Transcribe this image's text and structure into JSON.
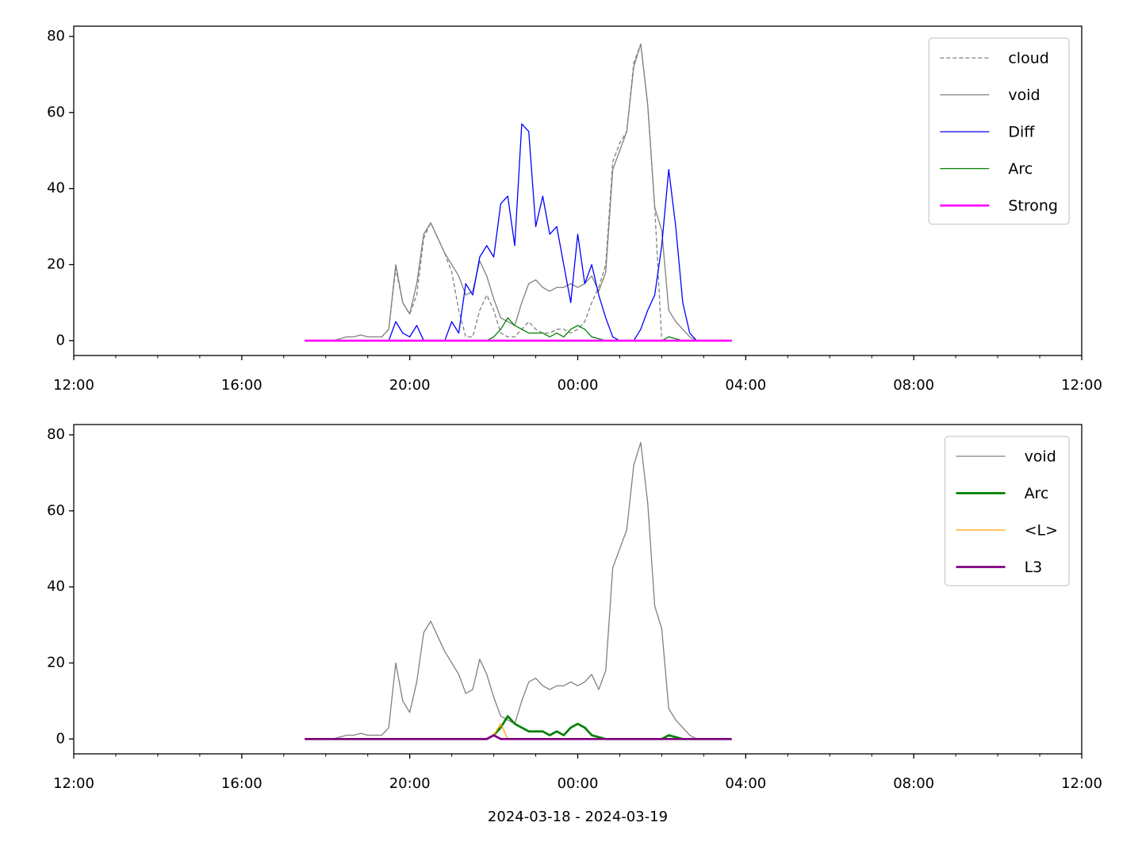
{
  "chart_data": [
    {
      "type": "line",
      "x": [
        "2024-03-18T17:30",
        "2024-03-18T17:40",
        "2024-03-18T17:50",
        "2024-03-18T18:00",
        "2024-03-18T18:10",
        "2024-03-18T18:20",
        "2024-03-18T18:30",
        "2024-03-18T18:40",
        "2024-03-18T18:50",
        "2024-03-18T19:00",
        "2024-03-18T19:10",
        "2024-03-18T19:20",
        "2024-03-18T19:30",
        "2024-03-18T19:40",
        "2024-03-18T19:50",
        "2024-03-18T20:00",
        "2024-03-18T20:10",
        "2024-03-18T20:20",
        "2024-03-18T20:30",
        "2024-03-18T20:40",
        "2024-03-18T20:50",
        "2024-03-18T21:00",
        "2024-03-18T21:10",
        "2024-03-18T21:20",
        "2024-03-18T21:30",
        "2024-03-18T21:40",
        "2024-03-18T21:50",
        "2024-03-18T22:00",
        "2024-03-18T22:10",
        "2024-03-18T22:20",
        "2024-03-18T22:30",
        "2024-03-18T22:40",
        "2024-03-18T22:50",
        "2024-03-18T23:00",
        "2024-03-18T23:10",
        "2024-03-18T23:20",
        "2024-03-18T23:30",
        "2024-03-18T23:40",
        "2024-03-18T23:50",
        "2024-03-19T00:00",
        "2024-03-19T00:10",
        "2024-03-19T00:20",
        "2024-03-19T00:30",
        "2024-03-19T00:40",
        "2024-03-19T00:50",
        "2024-03-19T01:00",
        "2024-03-19T01:10",
        "2024-03-19T01:20",
        "2024-03-19T01:30",
        "2024-03-19T01:40",
        "2024-03-19T01:50",
        "2024-03-19T02:00",
        "2024-03-19T02:10",
        "2024-03-19T02:20",
        "2024-03-19T02:30",
        "2024-03-19T02:40",
        "2024-03-19T02:50",
        "2024-03-19T03:00",
        "2024-03-19T03:10",
        "2024-03-19T03:20",
        "2024-03-19T03:30",
        "2024-03-19T03:40"
      ],
      "series": [
        {
          "name": "cloud",
          "color": "#808080",
          "linestyle": "dashed",
          "linewidth": 1.3,
          "values": [
            null,
            null,
            null,
            null,
            null,
            null,
            null,
            null,
            null,
            null,
            null,
            1,
            3,
            19,
            10,
            7,
            12,
            27,
            31,
            27,
            23,
            18,
            8,
            1,
            1,
            8,
            12,
            8,
            2,
            1,
            1,
            3,
            5,
            3,
            2,
            2,
            3,
            3,
            2,
            3,
            5,
            10,
            14,
            20,
            47,
            52,
            55,
            73,
            78,
            62,
            35,
            0,
            null,
            null,
            null,
            null,
            null,
            null,
            null,
            null,
            null,
            null
          ]
        },
        {
          "name": "void",
          "color": "#808080",
          "linewidth": 1.3,
          "values": [
            0,
            0,
            0,
            0,
            0,
            0.5,
            1,
            1,
            1.5,
            1,
            1,
            1,
            3,
            20,
            10,
            7,
            15,
            28,
            31,
            27,
            23,
            20,
            17,
            12,
            13,
            21,
            17,
            11,
            6,
            5,
            4,
            10,
            15,
            16,
            14,
            13,
            14,
            14,
            15,
            14,
            15,
            17,
            13,
            18,
            45,
            50,
            55,
            72,
            78,
            62,
            35,
            29,
            8,
            5,
            3,
            1,
            0,
            null,
            null,
            null,
            null,
            null
          ]
        },
        {
          "name": "Diff",
          "color": "#0000ff",
          "linewidth": 1.3,
          "values": [
            0,
            0,
            0,
            0,
            0,
            0,
            0,
            0,
            0,
            0,
            0,
            0,
            0,
            5,
            2,
            1,
            4,
            0,
            0,
            0,
            0,
            5,
            2,
            15,
            12,
            22,
            25,
            22,
            36,
            38,
            25,
            57,
            55,
            30,
            38,
            28,
            30,
            20,
            10,
            28,
            15,
            20,
            12,
            6,
            1,
            0,
            0,
            0,
            3,
            8,
            12,
            25,
            45,
            30,
            10,
            2,
            0,
            0,
            0,
            0,
            0,
            0
          ]
        },
        {
          "name": "Arc",
          "color": "#008000",
          "linewidth": 1.3,
          "values": [
            0,
            0,
            0,
            0,
            0,
            0,
            0,
            0,
            0,
            0,
            0,
            0,
            0,
            0,
            0,
            0,
            0,
            0,
            0,
            0,
            0,
            0,
            0,
            0,
            0,
            0,
            0,
            1,
            3,
            6,
            4,
            3,
            2,
            2,
            2,
            1,
            2,
            1,
            3,
            4,
            3,
            1,
            0.5,
            0,
            0,
            0,
            0,
            0,
            0,
            0,
            0,
            0,
            1,
            0.5,
            0,
            0,
            0,
            0,
            0,
            0,
            0,
            0
          ]
        },
        {
          "name": "Strong",
          "color": "#ff00ff",
          "linewidth": 2.7,
          "values": [
            0,
            0,
            0,
            0,
            0,
            0,
            0,
            0,
            0,
            0,
            0,
            0,
            0,
            0,
            0,
            0,
            0,
            0,
            0,
            0,
            0,
            0,
            0,
            0,
            0,
            0,
            0,
            0,
            0,
            0,
            0,
            0,
            0,
            0,
            0,
            0,
            0,
            0,
            0,
            0,
            0,
            0,
            0,
            0,
            0,
            0,
            0,
            0,
            0,
            0,
            0,
            0,
            0,
            0,
            0,
            0,
            0,
            0,
            0,
            0,
            0,
            0
          ]
        }
      ],
      "xlim": [
        "2024-03-18T12:00",
        "2024-03-19T12:00"
      ],
      "xticks": [
        {
          "value": "2024-03-18T12:00",
          "label": "12:00"
        },
        {
          "value": "2024-03-18T16:00",
          "label": "16:00"
        },
        {
          "value": "2024-03-18T20:00",
          "label": "20:00"
        },
        {
          "value": "2024-03-19T00:00",
          "label": "00:00"
        },
        {
          "value": "2024-03-19T04:00",
          "label": "04:00"
        },
        {
          "value": "2024-03-19T08:00",
          "label": "08:00"
        },
        {
          "value": "2024-03-19T12:00",
          "label": "12:00"
        }
      ],
      "ylim": [
        -3.9,
        82.7
      ],
      "yticks": [
        0,
        20,
        40,
        60,
        80
      ],
      "legend": "upper right"
    },
    {
      "type": "line",
      "x": [
        "2024-03-18T17:30",
        "2024-03-18T17:40",
        "2024-03-18T17:50",
        "2024-03-18T18:00",
        "2024-03-18T18:10",
        "2024-03-18T18:20",
        "2024-03-18T18:30",
        "2024-03-18T18:40",
        "2024-03-18T18:50",
        "2024-03-18T19:00",
        "2024-03-18T19:10",
        "2024-03-18T19:20",
        "2024-03-18T19:30",
        "2024-03-18T19:40",
        "2024-03-18T19:50",
        "2024-03-18T20:00",
        "2024-03-18T20:10",
        "2024-03-18T20:20",
        "2024-03-18T20:30",
        "2024-03-18T20:40",
        "2024-03-18T20:50",
        "2024-03-18T21:00",
        "2024-03-18T21:10",
        "2024-03-18T21:20",
        "2024-03-18T21:30",
        "2024-03-18T21:40",
        "2024-03-18T21:50",
        "2024-03-18T22:00",
        "2024-03-18T22:10",
        "2024-03-18T22:20",
        "2024-03-18T22:30",
        "2024-03-18T22:40",
        "2024-03-18T22:50",
        "2024-03-18T23:00",
        "2024-03-18T23:10",
        "2024-03-18T23:20",
        "2024-03-18T23:30",
        "2024-03-18T23:40",
        "2024-03-18T23:50",
        "2024-03-19T00:00",
        "2024-03-19T00:10",
        "2024-03-19T00:20",
        "2024-03-19T00:30",
        "2024-03-19T00:40",
        "2024-03-19T00:50",
        "2024-03-19T01:00",
        "2024-03-19T01:10",
        "2024-03-19T01:20",
        "2024-03-19T01:30",
        "2024-03-19T01:40",
        "2024-03-19T01:50",
        "2024-03-19T02:00",
        "2024-03-19T02:10",
        "2024-03-19T02:20",
        "2024-03-19T02:30",
        "2024-03-19T02:40",
        "2024-03-19T02:50",
        "2024-03-19T03:00",
        "2024-03-19T03:10",
        "2024-03-19T03:20",
        "2024-03-19T03:30",
        "2024-03-19T03:40"
      ],
      "series": [
        {
          "name": "void",
          "color": "#808080",
          "linewidth": 1.3,
          "values": [
            0,
            0,
            0,
            0,
            0,
            0.5,
            1,
            1,
            1.5,
            1,
            1,
            1,
            3,
            20,
            10,
            7,
            15,
            28,
            31,
            27,
            23,
            20,
            17,
            12,
            13,
            21,
            17,
            11,
            6,
            5,
            4,
            10,
            15,
            16,
            14,
            13,
            14,
            14,
            15,
            14,
            15,
            17,
            13,
            18,
            45,
            50,
            55,
            72,
            78,
            62,
            35,
            29,
            8,
            5,
            3,
            1,
            0,
            null,
            null,
            null,
            null,
            null
          ]
        },
        {
          "name": "Arc",
          "color": "#008000",
          "linewidth": 2.7,
          "values": [
            0,
            0,
            0,
            0,
            0,
            0,
            0,
            0,
            0,
            0,
            0,
            0,
            0,
            0,
            0,
            0,
            0,
            0,
            0,
            0,
            0,
            0,
            0,
            0,
            0,
            0,
            0,
            1,
            3,
            6,
            4,
            3,
            2,
            2,
            2,
            1,
            2,
            1,
            3,
            4,
            3,
            1,
            0.5,
            0,
            0,
            0,
            0,
            0,
            0,
            0,
            0,
            0,
            1,
            0.5,
            0,
            0,
            0,
            0,
            0,
            0,
            0,
            0
          ]
        },
        {
          "name": "<L>",
          "color": "#ffa500",
          "linewidth": 1.3,
          "values": [
            0,
            0,
            0,
            0,
            0,
            0,
            0,
            0,
            0,
            0,
            0,
            0,
            0,
            0,
            0,
            0,
            0,
            0,
            0,
            0,
            0,
            0,
            0,
            0,
            0,
            0,
            0,
            1,
            4,
            0,
            0,
            0,
            0,
            0,
            0,
            0,
            0,
            0,
            0,
            0,
            0,
            0,
            0,
            0,
            0,
            0,
            0,
            0,
            0,
            0,
            0,
            0,
            0,
            0,
            0,
            0,
            0,
            0,
            0,
            0,
            0,
            0
          ]
        },
        {
          "name": "L3",
          "color": "#800080",
          "linewidth": 2.7,
          "values": [
            0,
            0,
            0,
            0,
            0,
            0,
            0,
            0,
            0,
            0,
            0,
            0,
            0,
            0,
            0,
            0,
            0,
            0,
            0,
            0,
            0,
            0,
            0,
            0,
            0,
            0,
            0,
            1,
            0,
            0,
            0,
            0,
            0,
            0,
            0,
            0,
            0,
            0,
            0,
            0,
            0,
            0,
            0,
            0,
            0,
            0,
            0,
            0,
            0,
            0,
            0,
            0,
            0,
            0,
            0,
            0,
            0,
            0,
            0,
            0,
            0,
            0
          ]
        }
      ],
      "xlim": [
        "2024-03-18T12:00",
        "2024-03-19T12:00"
      ],
      "xticks": [
        {
          "value": "2024-03-18T12:00",
          "label": "12:00"
        },
        {
          "value": "2024-03-18T16:00",
          "label": "16:00"
        },
        {
          "value": "2024-03-18T20:00",
          "label": "20:00"
        },
        {
          "value": "2024-03-19T00:00",
          "label": "00:00"
        },
        {
          "value": "2024-03-19T04:00",
          "label": "04:00"
        },
        {
          "value": "2024-03-19T08:00",
          "label": "08:00"
        },
        {
          "value": "2024-03-19T12:00",
          "label": "12:00"
        }
      ],
      "ylim": [
        -3.9,
        82.7
      ],
      "yticks": [
        0,
        20,
        40,
        60,
        80
      ],
      "legend": "upper right",
      "x_label": "2024-03-18 - 2024-03-19"
    }
  ]
}
